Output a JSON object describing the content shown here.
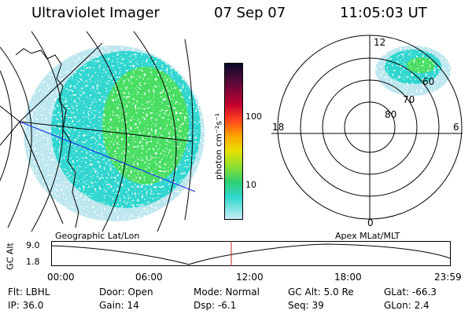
{
  "header": {
    "instrument": "Ultraviolet Imager",
    "date": "07 Sep 07",
    "time": "11:05:03 UT"
  },
  "geo_panel": {
    "label": "Geographic Lat/Lon"
  },
  "polar_panel": {
    "label": "Apex  MLat/MLT",
    "mlt_labels": [
      "12",
      "18",
      "6",
      "0"
    ],
    "lat_labels": [
      "60",
      "70",
      "80"
    ]
  },
  "colorbar": {
    "label": "photon cm⁻²s⁻¹",
    "ticks": [
      "100",
      "10"
    ]
  },
  "altitude_plot": {
    "ylabel": "GC Alt",
    "yticks": [
      "9.0",
      "1.8"
    ],
    "xticks": [
      "00:00",
      "06:00",
      "12:00",
      "18:00",
      "23:59"
    ]
  },
  "info": {
    "flt": "Flt: LBHL",
    "ip": "IP: 36.0",
    "door": "Door: Open",
    "gain": "Gain: 14",
    "mode": "Mode: Normal",
    "dsp": "Dsp:   -6.1",
    "gcalt": "GC Alt: 5.0 Re",
    "seq": "Seq: 39",
    "glat": "GLat:  -66.3",
    "glon": "GLon:   2.4"
  },
  "colors": {
    "blob_green": "#4ade64",
    "blob_cyan": "#33d6d0",
    "blob_light": "#bde7ef",
    "track_blue": "#1c2fe8",
    "cursor_red": "#c02020"
  }
}
